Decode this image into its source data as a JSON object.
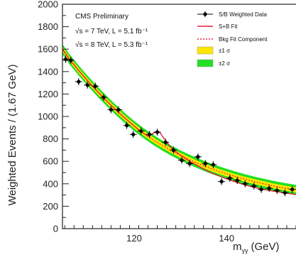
{
  "chart_data": {
    "type": "scatter",
    "ylabel": "Weighted Events / (1.67 GeV)",
    "xlabel_main": "m",
    "xlabel_sub": "γγ",
    "xlabel_unit": "(GeV)",
    "xlim": [
      104.5,
      155
    ],
    "ylim": [
      0,
      2000
    ],
    "xticks": [
      "120",
      "140"
    ],
    "xtick_values": [
      120,
      140
    ],
    "yticks": [
      "0",
      "200",
      "400",
      "600",
      "800",
      "1000",
      "1200",
      "1400",
      "1600",
      "1800",
      "2000"
    ],
    "ytick_values": [
      0,
      200,
      400,
      600,
      800,
      1000,
      1200,
      1400,
      1600,
      1800,
      2000
    ],
    "cms_label": "CMS Preliminary",
    "energy_lines": [
      "√s = 7 TeV, L = 5.1 fb⁻¹",
      "√s = 8 TeV, L = 5.3 fb⁻¹"
    ],
    "legend": {
      "placement": "top-right",
      "entries": [
        {
          "label": "S/B Weighted Data",
          "style": "points"
        },
        {
          "label": "S+B Fit",
          "style": "line",
          "color": "#e0203a"
        },
        {
          "label": "Bkg Fit Component",
          "style": "dotted",
          "color": "#e0203a"
        },
        {
          "label": "±1 σ",
          "style": "band",
          "color": "#ffe600"
        },
        {
          "label": "±2 σ",
          "style": "band",
          "color": "#22e022"
        }
      ]
    },
    "data_points": {
      "x": [
        105.2,
        106.3,
        108.0,
        109.9,
        111.6,
        113.4,
        115.0,
        116.6,
        118.4,
        119.8,
        121.5,
        123.3,
        125.0,
        126.8,
        128.5,
        130.3,
        132.0,
        133.8,
        135.4,
        137.1,
        138.9,
        140.7,
        142.3,
        144.0,
        145.9,
        147.5,
        149.2,
        150.9,
        152.6,
        154.2
      ],
      "y": [
        1510,
        1500,
        1310,
        1280,
        1270,
        1170,
        1060,
        1060,
        920,
        840,
        870,
        840,
        860,
        770,
        700,
        610,
        580,
        640,
        580,
        570,
        420,
        450,
        430,
        400,
        380,
        350,
        360,
        340,
        320,
        350
      ]
    },
    "fit_curve": {
      "x": [
        104.5,
        106,
        108,
        110,
        112,
        114,
        116,
        118,
        120,
        121,
        122,
        123,
        124,
        124.5,
        125,
        125.5,
        126,
        127,
        128,
        130,
        132,
        134,
        136,
        138,
        140,
        142,
        144,
        146,
        148,
        150,
        152,
        155
      ],
      "y": [
        1600,
        1510,
        1410,
        1315,
        1225,
        1140,
        1060,
        985,
        915,
        880,
        850,
        825,
        845,
        860,
        872,
        860,
        830,
        775,
        720,
        655,
        600,
        555,
        510,
        475,
        443,
        415,
        390,
        368,
        350,
        335,
        322,
        303
      ]
    },
    "bkg_curve": {
      "x": [
        104.5,
        106,
        108,
        110,
        112,
        114,
        116,
        118,
        120,
        122,
        124,
        126,
        128,
        130,
        132,
        134,
        136,
        138,
        140,
        142,
        144,
        146,
        148,
        150,
        152,
        155
      ],
      "y": [
        1600,
        1510,
        1410,
        1315,
        1225,
        1140,
        1060,
        985,
        915,
        852,
        795,
        743,
        696,
        653,
        614,
        578,
        545,
        515,
        488,
        463,
        440,
        419,
        400,
        382,
        366,
        345
      ]
    },
    "band_1sigma_halfwidth": 22,
    "band_2sigma_halfwidth": 45,
    "colors": {
      "points": "#000000",
      "fit": "#e0203a",
      "band1": "#ffe600",
      "band2": "#22e022"
    }
  }
}
